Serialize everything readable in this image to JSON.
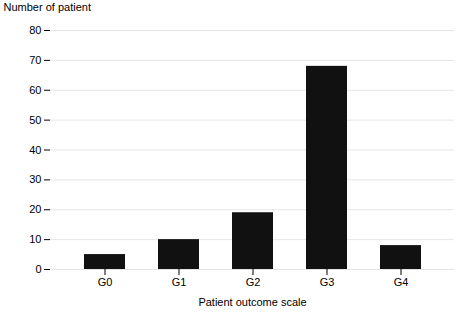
{
  "chart_data": {
    "type": "bar",
    "categories": [
      "G0",
      "G1",
      "G2",
      "G3",
      "G4"
    ],
    "values": [
      5,
      10,
      19,
      68,
      8
    ],
    "color": "#111111",
    "xlabel": "Patient outcome scale",
    "ylabel": "Number of patient",
    "ylim": [
      0,
      80
    ],
    "yticks": [
      0,
      10,
      20,
      30,
      40,
      50,
      60,
      70,
      80
    ],
    "grid": true
  }
}
